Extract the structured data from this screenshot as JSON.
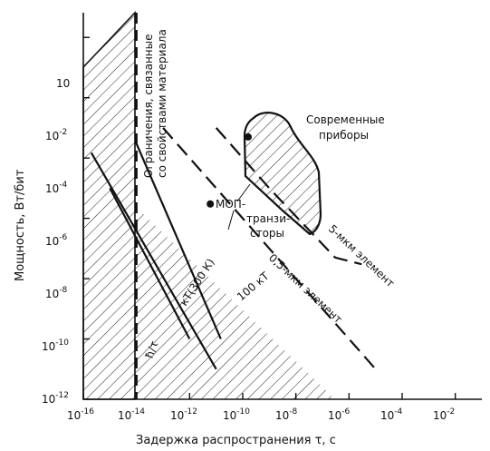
{
  "chart_data": {
    "type": "line",
    "xlabel": "Задержка распространения τ, с",
    "ylabel": "Мощность, Вт/бит",
    "x_scale": "log",
    "y_scale": "log",
    "xlim": [
      1e-16,
      0.1
    ],
    "ylim": [
      1e-12,
      10
    ],
    "grid": false,
    "x_ticks": [
      {
        "base": "10",
        "exp": "-16"
      },
      {
        "base": "10",
        "exp": "-14"
      },
      {
        "base": "10",
        "exp": "-12"
      },
      {
        "base": "10",
        "exp": "-10"
      },
      {
        "base": "10",
        "exp": "-8"
      },
      {
        "base": "10",
        "exp": "-6"
      },
      {
        "base": "10",
        "exp": "-4"
      },
      {
        "base": "10",
        "exp": "-2"
      }
    ],
    "y_ticks": [
      {
        "base": "10",
        "exp": "-12"
      },
      {
        "base": "10",
        "exp": "-10"
      },
      {
        "base": "10",
        "exp": "-8"
      },
      {
        "base": "10",
        "exp": "-6"
      },
      {
        "base": "10",
        "exp": "-4"
      },
      {
        "base": "10",
        "exp": "-2"
      },
      {
        "base": "10",
        "exp": ""
      }
    ],
    "series": [
      {
        "name": "ħ/τ",
        "style": "solid",
        "points": [
          [
            1e-15,
            1e-05
          ],
          [
            1e-12,
            1e-10
          ]
        ]
      },
      {
        "name": "кТ(300 К)",
        "style": "solid",
        "points": [
          [
            2e-16,
            0.00015
          ],
          [
            1e-11,
            1e-11
          ]
        ]
      },
      {
        "name": "100 кТ",
        "style": "solid",
        "points": [
          [
            1e-14,
            0.0003
          ],
          [
            1.5e-11,
            1e-10
          ]
        ]
      },
      {
        "name": "0,5-мкм элемент",
        "style": "dashed",
        "points": [
          [
            1e-13,
            0.001
          ],
          [
            1e-09,
            1e-07
          ],
          [
            1e-05,
            1e-11
          ]
        ]
      },
      {
        "name": "5-мкм элемент",
        "style": "dashed",
        "points": [
          [
            1e-11,
            0.001
          ],
          [
            1e-09,
            1e-05
          ],
          [
            3e-07,
            5e-08
          ],
          [
            3e-06,
            3e-08
          ]
        ]
      }
    ],
    "material_limit_tau": 1e-14,
    "mos_points": [
      [
        6e-12,
        3e-06
      ],
      [
        1.6e-10,
        0.0005
      ]
    ],
    "labels": {
      "material_limit": "Ограничения, связанные со свойствами материала",
      "modern_devices": "Современные приборы",
      "mos": "МОП-транзисторы"
    }
  }
}
